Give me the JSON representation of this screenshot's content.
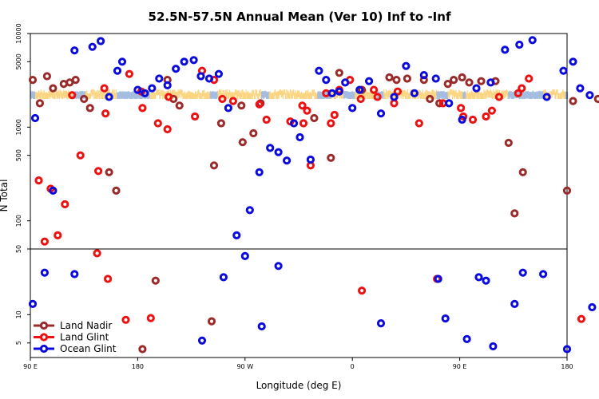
{
  "chart_data": {
    "type": "scatter",
    "title": "52.5N-57.5N Annual Mean (Ver 10)   Inf to -Inf",
    "xlabel": "Longitude (deg E)",
    "ylabel": "N Total",
    "x_ticks": [
      {
        "value": 90,
        "label": "90 E"
      },
      {
        "value": 180,
        "label": "180"
      },
      {
        "value": 270,
        "label": "90 W"
      },
      {
        "value": 360,
        "label": "0"
      },
      {
        "value": 450,
        "label": "90 E"
      },
      {
        "value": 540,
        "label": "180"
      }
    ],
    "xlim": [
      90,
      540
    ],
    "y_upper": {
      "scale": "log",
      "ylim": [
        50,
        10000
      ],
      "ticks": [
        50,
        100,
        500,
        1000,
        5000,
        10000
      ],
      "tick_labels": [
        "50",
        "100",
        "500",
        "1000",
        "5000",
        "10000"
      ]
    },
    "y_lower": {
      "scale": "log",
      "ylim": [
        3.5,
        50
      ],
      "ticks": [
        5,
        10
      ],
      "tick_labels": [
        "5",
        "10"
      ]
    },
    "band": {
      "y_low": 2000,
      "y_high": 2400,
      "colors": {
        "ocean": "#a4bde0",
        "land": "#fbd582"
      }
    },
    "colors": {
      "land_nadir": "#9b2b2b",
      "land_glint": "#ee1111",
      "ocean_glint": "#0b0bdd"
    },
    "legend": [
      {
        "label": "Land Nadir",
        "series": "land_nadir"
      },
      {
        "label": "Land Glint",
        "series": "land_glint"
      },
      {
        "label": "Ocean Glint",
        "series": "ocean_glint"
      }
    ],
    "series": {
      "land_nadir": {
        "name": "Land Nadir",
        "x": [
          92,
          98,
          104,
          109,
          118,
          123,
          128,
          135,
          140,
          156,
          162,
          205,
          210,
          215,
          244,
          250,
          267,
          268,
          277,
          283,
          328,
          342,
          349,
          368,
          391,
          397,
          406,
          420,
          425,
          433,
          440,
          445,
          452,
          458,
          468,
          480,
          491,
          496,
          503,
          540,
          545,
          566
        ],
        "y": [
          3200,
          1800,
          3500,
          2600,
          2900,
          3000,
          3200,
          2000,
          1600,
          330,
          210,
          3200,
          2000,
          1700,
          390,
          1100,
          1700,
          690,
          860,
          1800,
          1250,
          470,
          3800,
          2500,
          3400,
          3200,
          3300,
          3200,
          2000,
          1800,
          2900,
          3200,
          3400,
          3000,
          3100,
          3100,
          680,
          120,
          330,
          210,
          1900,
          2000
        ],
        "y_lower": {
          "x": [
            195,
            242,
            184
          ],
          "y": [
            23,
            8.5,
            4.3
          ]
        }
      },
      "land_glint": {
        "name": "Land Glint",
        "x": [
          97,
          102,
          107,
          113,
          119,
          125,
          132,
          146,
          147,
          152,
          153,
          173,
          183,
          184,
          197,
          205,
          206,
          228,
          234,
          244,
          251,
          260,
          282,
          288,
          308,
          318,
          319,
          322,
          325,
          338,
          342,
          345,
          349,
          358,
          367,
          378,
          381,
          395,
          398,
          416,
          436,
          451,
          453,
          461,
          472,
          477,
          483,
          499,
          502,
          508
        ],
        "y": [
          270,
          60,
          220,
          70,
          150,
          2200,
          500,
          45,
          340,
          2600,
          1400,
          3700,
          2400,
          1600,
          1100,
          950,
          2100,
          1300,
          4000,
          3200,
          2000,
          1900,
          1750,
          1200,
          1150,
          1700,
          1100,
          1500,
          390,
          2300,
          1100,
          1350,
          2500,
          3200,
          2000,
          2500,
          2100,
          1800,
          2400,
          1100,
          1800,
          1600,
          1300,
          1200,
          1300,
          1500,
          2100,
          2300,
          2600,
          3300
        ],
        "y_lower": {
          "x": [
            155,
            170,
            191,
            368,
            431,
            552
          ],
          "y": [
            24,
            8.8,
            9.2,
            18,
            24,
            9
          ]
        }
      },
      "ocean_glint": {
        "name": "Ocean Glint",
        "x": [
          94,
          109,
          127,
          142,
          149,
          156,
          163,
          167,
          180,
          186,
          192,
          198,
          205,
          212,
          219,
          227,
          233,
          240,
          248,
          256,
          263,
          274,
          282,
          291,
          298,
          305,
          311,
          316,
          325,
          332,
          338,
          343,
          349,
          354,
          360,
          366,
          374,
          384,
          395,
          405,
          412,
          420,
          430,
          441,
          452,
          464,
          476,
          488,
          500,
          511,
          523,
          537,
          545,
          551,
          559
        ],
        "y": [
          1250,
          210,
          6600,
          7200,
          8300,
          2100,
          4000,
          5000,
          2500,
          2300,
          2600,
          3300,
          2800,
          4200,
          5000,
          5200,
          3500,
          3300,
          3700,
          1600,
          70,
          130,
          330,
          600,
          540,
          440,
          1100,
          780,
          450,
          4000,
          3200,
          2300,
          2400,
          3000,
          1600,
          2500,
          3100,
          1400,
          2100,
          4500,
          2300,
          3600,
          3300,
          1800,
          1200,
          2600,
          3000,
          6700,
          7600,
          8500,
          2100,
          4000,
          5000,
          2600,
          2200
        ],
        "y_lower": {
          "x": [
            92,
            102,
            127,
            234,
            252,
            270,
            284,
            298,
            384,
            432,
            438,
            456,
            466,
            472,
            478,
            496,
            503,
            520,
            540,
            561
          ],
          "y": [
            13,
            28,
            27,
            5.3,
            25,
            42,
            7.5,
            33,
            8.1,
            24,
            9.1,
            5.5,
            25,
            23,
            4.6,
            13,
            28,
            27,
            4.3,
            12
          ]
        }
      }
    }
  }
}
